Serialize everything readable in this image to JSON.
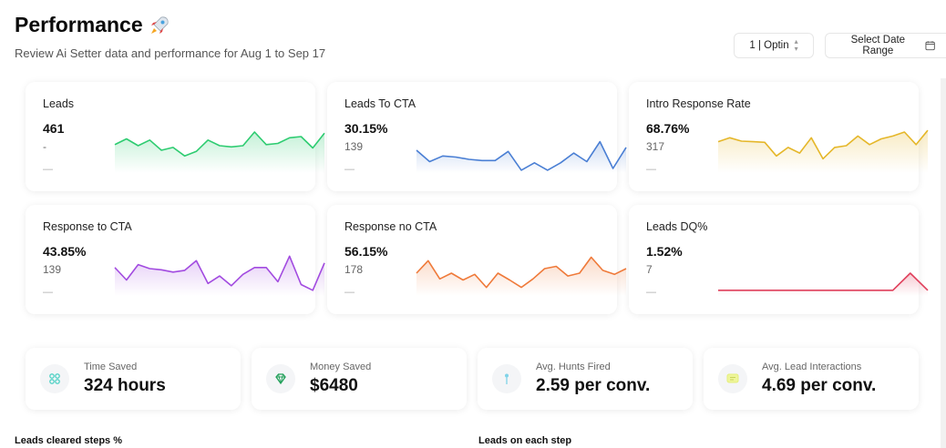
{
  "header": {
    "title": "Performance",
    "subtitle": "Review Ai Setter data and performance for Aug 1 to Sep 17"
  },
  "toolbar": {
    "optin_label": "1 | Optin",
    "date_label": "Select Date Range"
  },
  "metrics": [
    {
      "label": "Leads",
      "value": "461",
      "sub": "-",
      "dash": "—",
      "color": "#2ecc71",
      "spark": [
        50,
        60,
        48,
        58,
        40,
        45,
        30,
        38,
        58,
        48,
        46,
        48,
        72,
        50,
        52,
        62,
        64,
        44,
        70
      ]
    },
    {
      "label": "Leads To CTA",
      "value": "30.15%",
      "sub": "139",
      "dash": "—",
      "color": "#4a7fd4",
      "spark": [
        40,
        20,
        30,
        28,
        24,
        22,
        22,
        38,
        5,
        18,
        5,
        18,
        35,
        20,
        55,
        8,
        45
      ]
    },
    {
      "label": "Intro Response Rate",
      "value": "68.76%",
      "sub": "317",
      "dash": "—",
      "color": "#e5b72a",
      "spark": [
        55,
        62,
        56,
        55,
        54,
        30,
        45,
        35,
        62,
        25,
        45,
        48,
        65,
        50,
        60,
        65,
        72,
        50,
        75
      ]
    },
    {
      "label": "Response to CTA",
      "value": "43.85%",
      "sub": "139",
      "dash": "—",
      "color": "#a24be0",
      "spark": [
        50,
        28,
        55,
        48,
        46,
        42,
        45,
        62,
        22,
        35,
        18,
        38,
        50,
        50,
        25,
        70,
        20,
        10,
        58
      ]
    },
    {
      "label": "Response no CTA",
      "value": "56.15%",
      "sub": "178",
      "dash": "—",
      "color": "#ef7a3a",
      "spark": [
        40,
        62,
        30,
        40,
        28,
        38,
        15,
        40,
        28,
        15,
        30,
        48,
        52,
        35,
        40,
        68,
        45,
        38,
        48
      ]
    },
    {
      "label": "Leads DQ%",
      "value": "1.52%",
      "sub": "7",
      "dash": "—",
      "color": "#e0405c",
      "spark": [
        10,
        10,
        10,
        10,
        10,
        10,
        10,
        10,
        10,
        10,
        10,
        40,
        10
      ]
    }
  ],
  "stats": [
    {
      "label": "Time Saved",
      "value": "324 hours",
      "icon": "sparkle-icon",
      "color": "#4fd1c5"
    },
    {
      "label": "Money Saved",
      "value": "$6480",
      "icon": "diamond-icon",
      "color": "#22a05a"
    },
    {
      "label": "Avg. Hunts Fired",
      "value": "2.59 per conv.",
      "icon": "pin-icon",
      "color": "#7fd3e8"
    },
    {
      "label": "Avg. Lead Interactions",
      "value": "4.69 per conv.",
      "icon": "chat-icon",
      "color": "#e4ee7a"
    }
  ],
  "sections": {
    "left_title": "Leads cleared steps %",
    "right_title": "Leads on each step"
  }
}
